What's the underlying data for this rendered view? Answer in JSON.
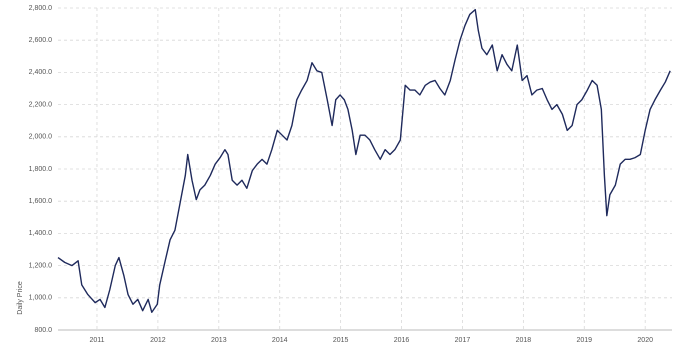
{
  "chart_data": {
    "type": "line",
    "ylabel": "Daily Price",
    "color": "#1f2a5c",
    "grid": true,
    "xlim": [
      2010.36,
      2020.44
    ],
    "xticks": [
      2011,
      2012,
      2013,
      2014,
      2015,
      2016,
      2017,
      2018,
      2019,
      2020
    ],
    "ylim": [
      800,
      2800
    ],
    "yticks": [
      {
        "value": 800,
        "label": "800.0"
      },
      {
        "value": 1000,
        "label": "1,000.0"
      },
      {
        "value": 1200,
        "label": "1,200.0"
      },
      {
        "value": 1400,
        "label": "1,400.0"
      },
      {
        "value": 1600,
        "label": "1,600.0"
      },
      {
        "value": 1800,
        "label": "1,800.0"
      },
      {
        "value": 2000,
        "label": "2,000.0"
      },
      {
        "value": 2200,
        "label": "2,200.0"
      },
      {
        "value": 2400,
        "label": "2,400.0"
      },
      {
        "value": 2600,
        "label": "2,600.0"
      },
      {
        "value": 2800,
        "label": "2,800.0"
      }
    ],
    "x": [
      2010.36,
      2010.47,
      2010.59,
      2010.69,
      2010.75,
      2010.85,
      2010.97,
      2011.05,
      2011.13,
      2011.21,
      2011.3,
      2011.36,
      2011.44,
      2011.51,
      2011.59,
      2011.67,
      2011.75,
      2011.84,
      2011.9,
      2011.99,
      2012.03,
      2012.12,
      2012.2,
      2012.28,
      2012.36,
      2012.45,
      2012.49,
      2012.56,
      2012.63,
      2012.69,
      2012.77,
      2012.86,
      2012.94,
      2013.02,
      2013.1,
      2013.15,
      2013.22,
      2013.3,
      2013.38,
      2013.46,
      2013.55,
      2013.63,
      2013.71,
      2013.79,
      2013.87,
      2013.96,
      2014.04,
      2014.12,
      2014.2,
      2014.28,
      2014.36,
      2014.45,
      2014.53,
      2014.61,
      2014.69,
      2014.78,
      2014.86,
      2014.92,
      2014.99,
      2015.06,
      2015.12,
      2015.19,
      2015.25,
      2015.32,
      2015.4,
      2015.48,
      2015.56,
      2015.65,
      2015.73,
      2015.81,
      2015.89,
      2015.98,
      2016.06,
      2016.14,
      2016.22,
      2016.3,
      2016.39,
      2016.47,
      2016.55,
      2016.63,
      2016.71,
      2016.8,
      2016.88,
      2016.96,
      2017.04,
      2017.12,
      2017.21,
      2017.26,
      2017.32,
      2017.4,
      2017.49,
      2017.57,
      2017.65,
      2017.73,
      2017.81,
      2017.9,
      2017.98,
      2018.06,
      2018.14,
      2018.22,
      2018.31,
      2018.39,
      2018.47,
      2018.55,
      2018.64,
      2018.72,
      2018.8,
      2018.88,
      2018.96,
      2019.05,
      2019.13,
      2019.21,
      2019.28,
      2019.33,
      2019.37,
      2019.42,
      2019.51,
      2019.59,
      2019.67,
      2019.75,
      2019.83,
      2019.92,
      2020.0,
      2020.08,
      2020.16,
      2020.25,
      2020.33,
      2020.41
    ],
    "values": [
      1250,
      1220,
      1200,
      1230,
      1080,
      1020,
      970,
      990,
      940,
      1050,
      1200,
      1250,
      1140,
      1020,
      960,
      990,
      920,
      990,
      910,
      960,
      1080,
      1230,
      1360,
      1420,
      1580,
      1760,
      1890,
      1730,
      1610,
      1670,
      1700,
      1760,
      1830,
      1870,
      1920,
      1890,
      1730,
      1700,
      1730,
      1680,
      1790,
      1830,
      1860,
      1830,
      1920,
      2040,
      2010,
      1980,
      2070,
      2230,
      2290,
      2350,
      2460,
      2410,
      2400,
      2230,
      2070,
      2230,
      2260,
      2230,
      2170,
      2040,
      1890,
      2010,
      2010,
      1980,
      1920,
      1860,
      1920,
      1890,
      1920,
      1980,
      2320,
      2290,
      2290,
      2260,
      2320,
      2340,
      2350,
      2300,
      2260,
      2350,
      2480,
      2600,
      2690,
      2760,
      2790,
      2660,
      2550,
      2510,
      2570,
      2410,
      2510,
      2450,
      2410,
      2570,
      2350,
      2380,
      2260,
      2290,
      2300,
      2230,
      2170,
      2200,
      2140,
      2040,
      2070,
      2200,
      2230,
      2290,
      2350,
      2320,
      2170,
      1760,
      1510,
      1640,
      1700,
      1830,
      1860,
      1860,
      1870,
      1890,
      2040,
      2170,
      2230,
      2290,
      2340,
      2410
    ]
  }
}
